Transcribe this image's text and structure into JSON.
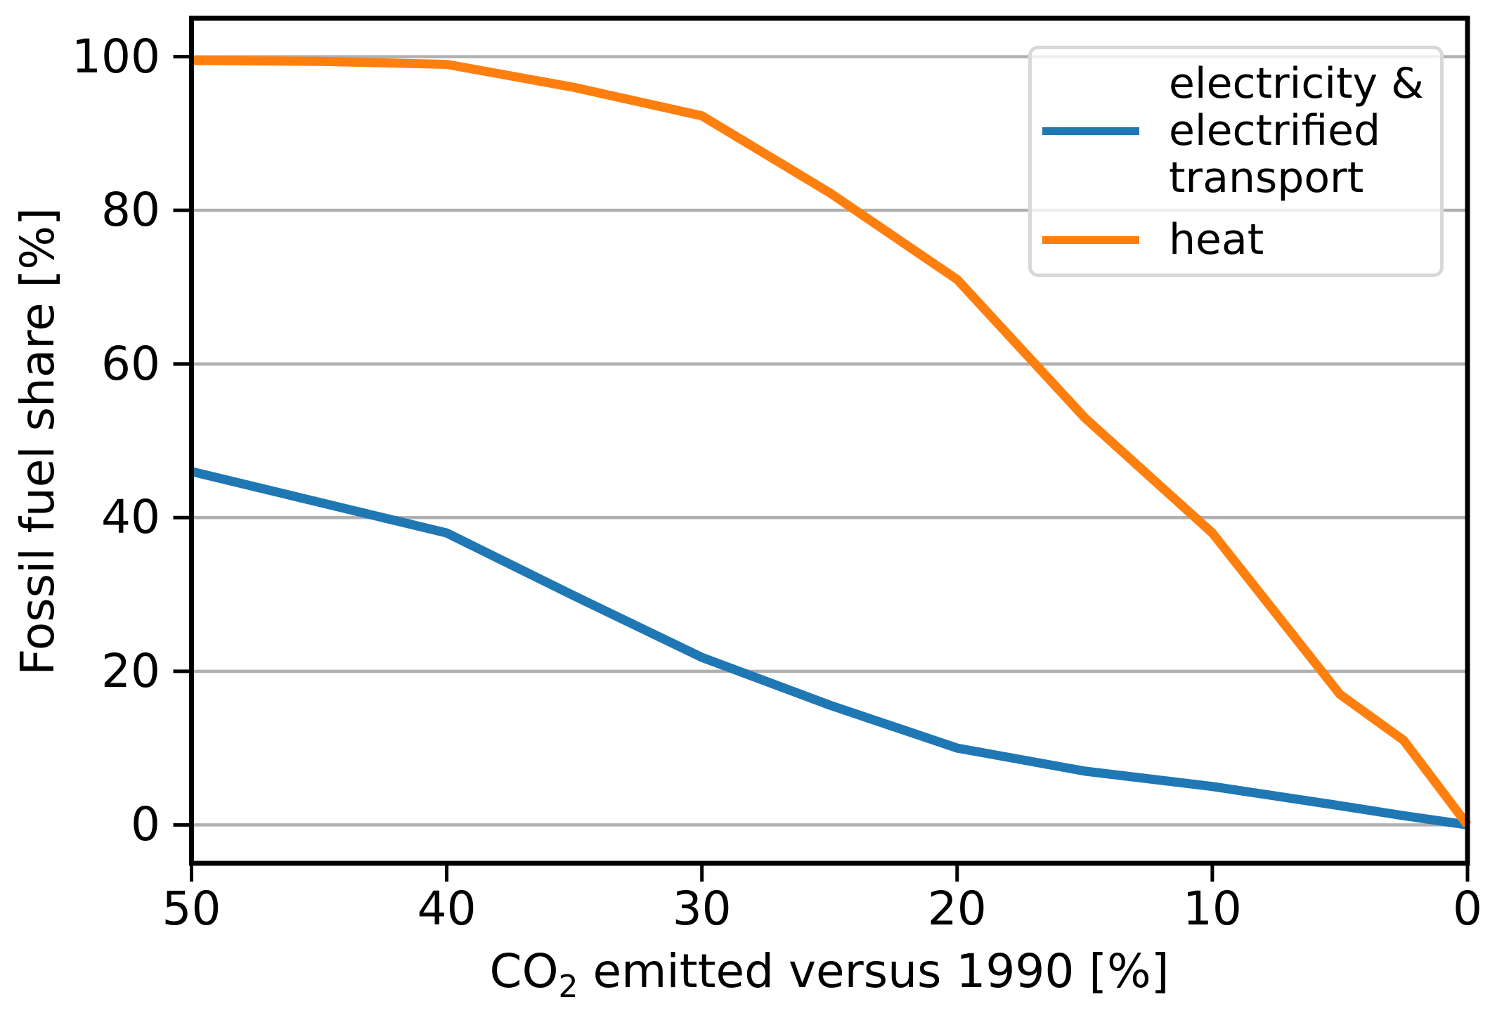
{
  "figure": {
    "background": "#ffffff",
    "spine_color": "#000000"
  },
  "chart_data": {
    "type": "line",
    "title": "",
    "xlabel": "CO2 emitted versus 1990 [%]",
    "xlabel_parts": [
      "CO",
      "2",
      " emitted versus 1990 [%]"
    ],
    "ylabel": "Fossil fuel share [%]",
    "grid": true,
    "grid_color": "#b0b0b0",
    "x_axis": {
      "range": [
        50,
        0
      ],
      "inverted": true,
      "ticks": [
        50,
        40,
        30,
        20,
        10,
        0
      ]
    },
    "y_axis": {
      "range": [
        -5,
        105
      ],
      "ticks": [
        0,
        20,
        40,
        60,
        80,
        100
      ]
    },
    "x": [
      50,
      45,
      40,
      35,
      30,
      25,
      20,
      15,
      10,
      5,
      2.5,
      0
    ],
    "series": [
      {
        "id": "electricity",
        "name": "electricity & electrified transport",
        "color": "#1f77b4",
        "values": [
          46,
          42,
          38,
          29.8,
          21.8,
          15.6,
          10,
          7,
          5,
          2.5,
          1.2,
          0
        ]
      },
      {
        "id": "heat",
        "name": "heat",
        "color": "#ff7f0e",
        "values": [
          99.5,
          99.4,
          99,
          96,
          92.3,
          82.3,
          71,
          53,
          38,
          17,
          11,
          0
        ]
      }
    ],
    "legend": {
      "position": "upper right",
      "entries": [
        {
          "series": "electricity",
          "lines": [
            "electricity &",
            "electrified",
            "transport"
          ]
        },
        {
          "series": "heat",
          "lines": [
            "heat"
          ]
        }
      ]
    }
  }
}
